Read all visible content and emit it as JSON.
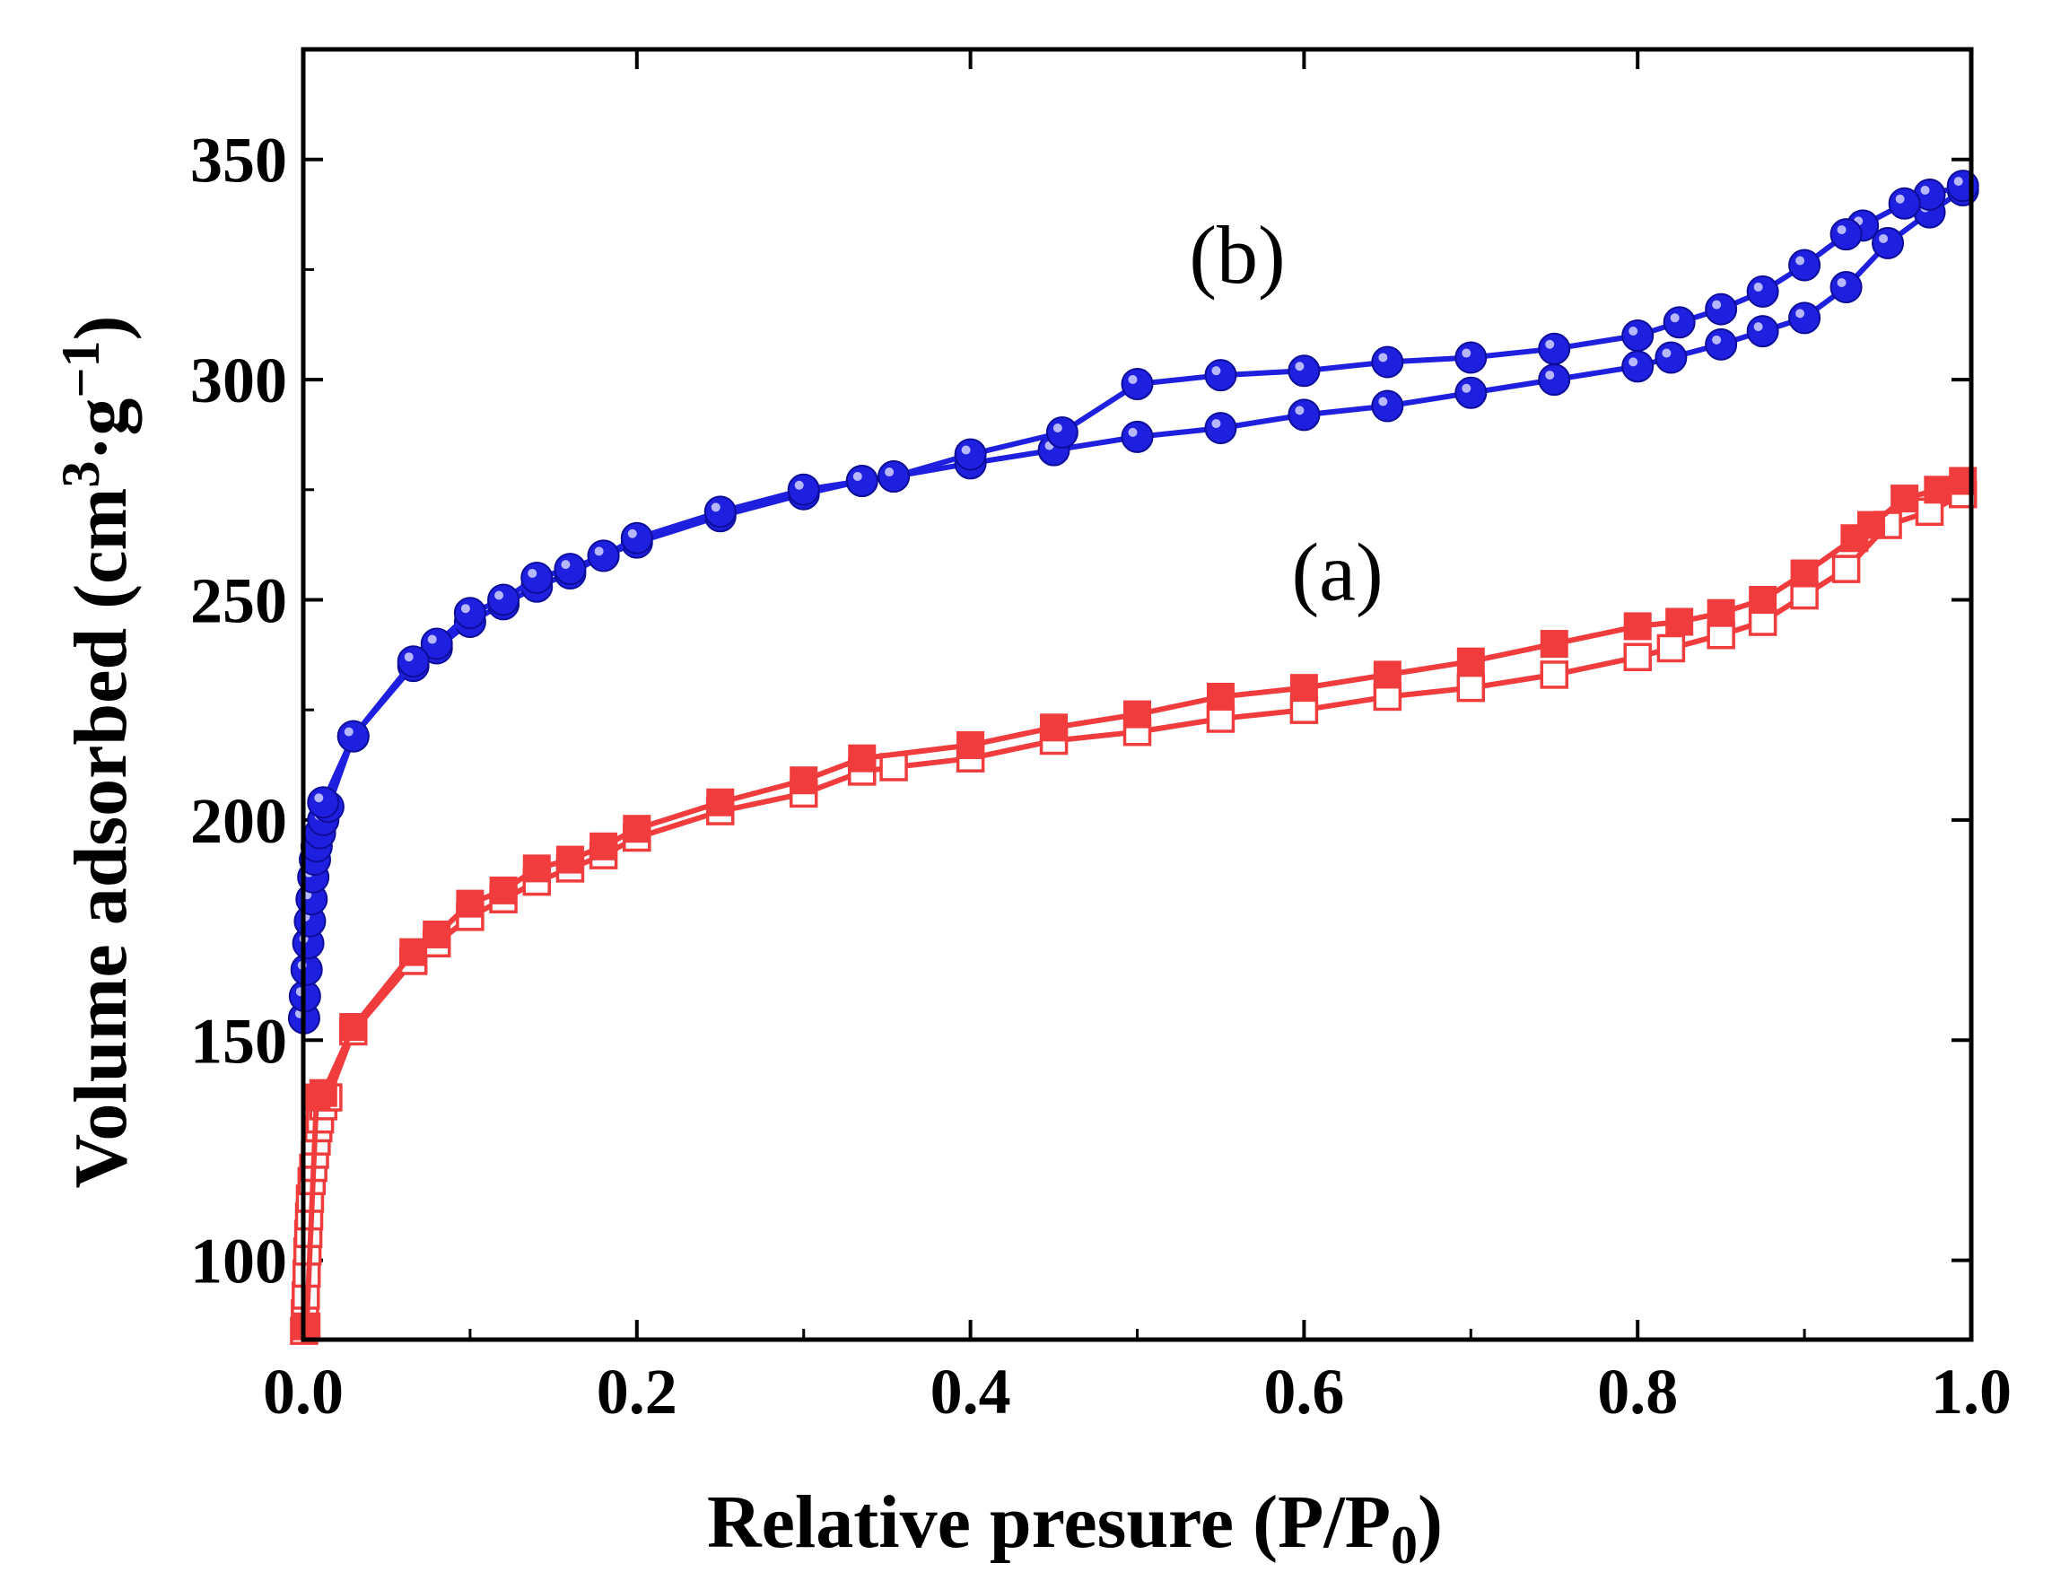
{
  "chart_data": {
    "type": "line",
    "xlabel_main": "Relative presure (P/P",
    "xlabel_sub": "0",
    "xlabel_end": ")",
    "ylabel_main": "Volume adsorbed (cm",
    "ylabel_sup1": "3",
    "ylabel_mid": "·g",
    "ylabel_sup2": "−1",
    "ylabel_end": ")",
    "xlim": [
      0.0,
      1.0
    ],
    "ylim": [
      82,
      375
    ],
    "x_ticks": [
      0.0,
      0.2,
      0.4,
      0.6,
      0.8,
      1.0
    ],
    "x_tick_labels": [
      "0.0",
      "0.2",
      "0.4",
      "0.6",
      "0.8",
      "1.0"
    ],
    "y_ticks": [
      100,
      150,
      200,
      250,
      300,
      350
    ],
    "y_tick_labels": [
      "100",
      "150",
      "200",
      "250",
      "300",
      "350"
    ],
    "annotations": [
      {
        "text": "(b)",
        "x": 0.56,
        "y": 322
      },
      {
        "text": "(a)",
        "x": 0.62,
        "y": 250
      }
    ],
    "series": [
      {
        "name": "(a) adsorption",
        "color": "#f03c3c",
        "marker": "square-open",
        "x": [
          0.0005,
          0.001,
          0.0015,
          0.002,
          0.0025,
          0.003,
          0.0035,
          0.004,
          0.005,
          0.006,
          0.007,
          0.008,
          0.009,
          0.01,
          0.012,
          0.015,
          0.03,
          0.066,
          0.08,
          0.1,
          0.12,
          0.14,
          0.16,
          0.18,
          0.2,
          0.25,
          0.3,
          0.335,
          0.354,
          0.4,
          0.45,
          0.5,
          0.55,
          0.6,
          0.65,
          0.7,
          0.75,
          0.8,
          0.82,
          0.85,
          0.875,
          0.9,
          0.925,
          0.95,
          0.975,
          0.995
        ],
        "y": [
          84,
          88,
          92,
          97,
          102,
          106,
          110,
          114,
          118,
          121,
          124,
          127,
          130,
          132,
          135,
          137,
          152,
          168,
          172,
          178,
          182,
          186,
          189,
          192,
          196,
          202,
          206,
          211,
          212,
          214,
          218,
          220,
          223,
          225,
          228,
          230,
          233,
          237,
          239,
          242,
          245,
          251,
          257,
          267,
          270,
          274
        ]
      },
      {
        "name": "(a) desorption",
        "color": "#f03c3c",
        "marker": "square-filled",
        "x": [
          0.995,
          0.98,
          0.96,
          0.94,
          0.93,
          0.9,
          0.875,
          0.85,
          0.825,
          0.8,
          0.75,
          0.7,
          0.65,
          0.6,
          0.55,
          0.5,
          0.45,
          0.4,
          0.335,
          0.3,
          0.25,
          0.2,
          0.18,
          0.16,
          0.14,
          0.12,
          0.1,
          0.08,
          0.066,
          0.03,
          0.012,
          0.008,
          0.002
        ],
        "y": [
          277,
          275,
          273,
          267,
          264,
          256,
          250,
          247,
          245,
          244,
          240,
          236,
          233,
          230,
          228,
          224,
          221,
          217,
          214,
          209,
          204,
          198,
          194,
          191,
          189,
          184,
          181,
          174,
          170,
          153,
          138,
          137,
          85
        ]
      },
      {
        "name": "(b) adsorption",
        "color": "#1f1fe0",
        "marker": "circle-filled",
        "x": [
          0.0005,
          0.001,
          0.002,
          0.003,
          0.004,
          0.005,
          0.006,
          0.007,
          0.008,
          0.01,
          0.012,
          0.015,
          0.03,
          0.066,
          0.08,
          0.1,
          0.12,
          0.14,
          0.16,
          0.18,
          0.2,
          0.25,
          0.3,
          0.335,
          0.354,
          0.4,
          0.45,
          0.5,
          0.55,
          0.6,
          0.65,
          0.7,
          0.75,
          0.8,
          0.82,
          0.85,
          0.875,
          0.9,
          0.925,
          0.95,
          0.975,
          0.995
        ],
        "y": [
          155,
          160,
          166,
          172,
          177,
          182,
          187,
          191,
          194,
          197,
          200,
          203,
          219,
          235,
          239,
          245,
          249,
          253,
          256,
          260,
          263,
          269,
          274,
          277,
          278,
          281,
          284,
          287,
          289,
          292,
          294,
          297,
          300,
          303,
          305,
          308,
          311,
          314,
          321,
          331,
          338,
          343
        ]
      },
      {
        "name": "(b) desorption",
        "color": "#1f1fe0",
        "marker": "circle-filled",
        "x": [
          0.995,
          0.975,
          0.96,
          0.935,
          0.925,
          0.9,
          0.875,
          0.85,
          0.825,
          0.8,
          0.75,
          0.7,
          0.65,
          0.6,
          0.55,
          0.5,
          0.455,
          0.4,
          0.354,
          0.335,
          0.3,
          0.25,
          0.2,
          0.18,
          0.16,
          0.14,
          0.12,
          0.1,
          0.08,
          0.066,
          0.03,
          0.012
        ],
        "y": [
          344,
          342,
          340,
          335,
          333,
          326,
          320,
          316,
          313,
          310,
          307,
          305,
          304,
          302,
          301,
          299,
          288,
          283,
          278,
          277,
          275,
          270,
          264,
          260,
          257,
          255,
          250,
          247,
          240,
          236,
          219,
          204
        ]
      }
    ]
  }
}
